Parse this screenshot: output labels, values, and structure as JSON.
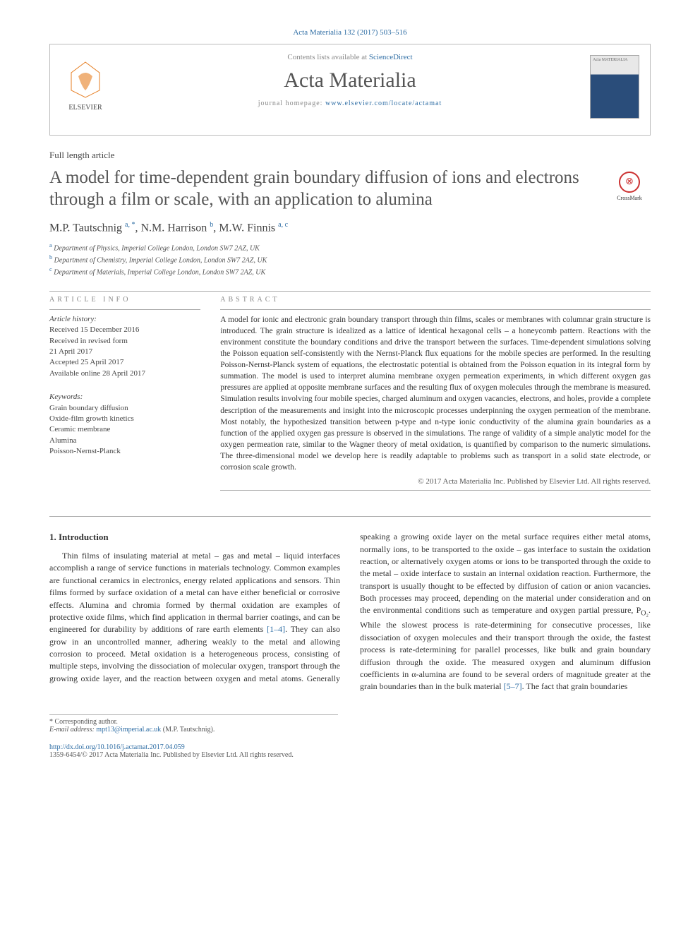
{
  "journal_ref": "Acta Materialia 132 (2017) 503–516",
  "header": {
    "contents_prefix": "Contents lists available at ",
    "contents_link": "ScienceDirect",
    "journal_name": "Acta Materialia",
    "homepage_prefix": "journal homepage: ",
    "homepage_url": "www.elsevier.com/locate/actamat",
    "elsevier": "ELSEVIER",
    "cover_label": "Acta MATERIALIA"
  },
  "article_type": "Full length article",
  "title": "A model for time-dependent grain boundary diffusion of ions and electrons through a film or scale, with an application to alumina",
  "crossmark": "CrossMark",
  "authors_html": "M.P. Tautschnig <sup>a, *</sup>, N.M. Harrison <sup>b</sup>, M.W. Finnis <sup>a, c</sup>",
  "affiliations": [
    {
      "sup": "a",
      "text": "Department of Physics, Imperial College London, London SW7 2AZ, UK"
    },
    {
      "sup": "b",
      "text": "Department of Chemistry, Imperial College London, London SW7 2AZ, UK"
    },
    {
      "sup": "c",
      "text": "Department of Materials, Imperial College London, London SW7 2AZ, UK"
    }
  ],
  "info": {
    "head": "ARTICLE INFO",
    "history_label": "Article history:",
    "history": [
      "Received 15 December 2016",
      "Received in revised form",
      "21 April 2017",
      "Accepted 25 April 2017",
      "Available online 28 April 2017"
    ],
    "keywords_label": "Keywords:",
    "keywords": [
      "Grain boundary diffusion",
      "Oxide-film growth kinetics",
      "Ceramic membrane",
      "Alumina",
      "Poisson-Nernst-Planck"
    ]
  },
  "abstract": {
    "head": "ABSTRACT",
    "text": "A model for ionic and electronic grain boundary transport through thin films, scales or membranes with columnar grain structure is introduced. The grain structure is idealized as a lattice of identical hexagonal cells – a honeycomb pattern. Reactions with the environment constitute the boundary conditions and drive the transport between the surfaces. Time-dependent simulations solving the Poisson equation self-consistently with the Nernst-Planck flux equations for the mobile species are performed. In the resulting Poisson-Nernst-Planck system of equations, the electrostatic potential is obtained from the Poisson equation in its integral form by summation. The model is used to interpret alumina membrane oxygen permeation experiments, in which different oxygen gas pressures are applied at opposite membrane surfaces and the resulting flux of oxygen molecules through the membrane is measured. Simulation results involving four mobile species, charged aluminum and oxygen vacancies, electrons, and holes, provide a complete description of the measurements and insight into the microscopic processes underpinning the oxygen permeation of the membrane. Most notably, the hypothesized transition between p-type and n-type ionic conductivity of the alumina grain boundaries as a function of the applied oxygen gas pressure is observed in the simulations. The range of validity of a simple analytic model for the oxygen permeation rate, similar to the Wagner theory of metal oxidation, is quantified by comparison to the numeric simulations. The three-dimensional model we develop here is readily adaptable to problems such as transport in a solid state electrode, or corrosion scale growth.",
    "copyright": "© 2017 Acta Materialia Inc. Published by Elsevier Ltd. All rights reserved."
  },
  "intro": {
    "heading": "1. Introduction",
    "col1": "Thin films of insulating material at metal – gas and metal – liquid interfaces accomplish a range of service functions in materials technology. Common examples are functional ceramics in electronics, energy related applications and sensors. Thin films formed by surface oxidation of a metal can have either beneficial or corrosive effects. Alumina and chromia formed by thermal oxidation are examples of protective oxide films, which find application in thermal barrier coatings, and can be engineered for durability by additions of rare earth elements ",
    "ref1": "[1–4]",
    "col1b": ". They can also grow in an uncontrolled manner, adhering weakly to the metal and allowing corrosion to proceed. Metal oxidation is a heterogeneous process, consisting of multiple steps, involving the dissociation of molecular",
    "col2a": "oxygen, transport through the growing oxide layer, and the reaction between oxygen and metal atoms. Generally speaking a growing oxide layer on the metal surface requires either metal atoms, normally ions, to be transported to the oxide – gas interface to sustain the oxidation reaction, or alternatively oxygen atoms or ions to be transported through the oxide to the metal – oxide interface to sustain an internal oxidation reaction. Furthermore, the transport is usually thought to be effected by diffusion of cation or anion vacancies. Both processes may proceed, depending on the material under consideration and on the environmental conditions such as temperature and oxygen partial pressure, P",
    "sub": "O₂",
    "col2b": ". While the slowest process is rate-determining for consecutive processes, like dissociation of oxygen molecules and their transport through the oxide, the fastest process is rate-determining for parallel processes, like bulk and grain boundary diffusion through the oxide. The measured oxygen and aluminum diffusion coefficients in α-alumina are found to be several orders of magnitude greater at the grain boundaries than in the bulk material ",
    "ref2": "[5–7]",
    "col2c": ". The fact that grain boundaries"
  },
  "footnote": {
    "star": "* Corresponding author.",
    "email_label": "E-mail address:",
    "email": "mpt13@imperial.ac.uk",
    "email_suffix": "(M.P. Tautschnig)."
  },
  "footer": {
    "doi": "http://dx.doi.org/10.1016/j.actamat.2017.04.059",
    "issn": "1359-6454/© 2017 Acta Materialia Inc. Published by Elsevier Ltd. All rights reserved."
  }
}
